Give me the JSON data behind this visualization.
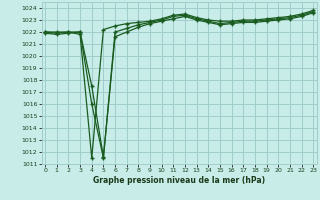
{
  "title": "Graphe pression niveau de la mer (hPa)",
  "bg_color": "#c8ede8",
  "grid_color": "#a0cccc",
  "line_color": "#1a5c20",
  "marker": "+",
  "ylim": [
    1011,
    1024.5
  ],
  "xlim": [
    -0.3,
    23.3
  ],
  "yticks": [
    1011,
    1012,
    1013,
    1014,
    1015,
    1016,
    1017,
    1018,
    1019,
    1020,
    1021,
    1022,
    1023,
    1024
  ],
  "xticks": [
    0,
    1,
    2,
    3,
    4,
    5,
    6,
    7,
    8,
    9,
    10,
    11,
    12,
    13,
    14,
    15,
    16,
    17,
    18,
    19,
    20,
    21,
    22,
    23
  ],
  "series": [
    [
      1022.0,
      1022.0,
      1022.0,
      1021.8,
      1011.5,
      1022.2,
      1022.5,
      1022.7,
      1022.8,
      1022.9,
      1023.1,
      1023.4,
      1023.5,
      1023.2,
      1023.0,
      1022.9,
      1022.9,
      1023.0,
      1023.0,
      1023.1,
      1023.2,
      1023.3,
      1023.5,
      1023.8
    ],
    [
      1022.0,
      1021.9,
      1022.0,
      1022.0,
      1016.0,
      1011.5,
      1022.0,
      1022.3,
      1022.6,
      1022.8,
      1023.0,
      1023.3,
      1023.4,
      1023.1,
      1022.9,
      1022.7,
      1022.8,
      1022.9,
      1022.9,
      1023.0,
      1023.1,
      1023.2,
      1023.4,
      1023.7
    ],
    [
      1021.9,
      1021.8,
      1021.9,
      1022.0,
      1017.5,
      1011.6,
      1021.6,
      1022.0,
      1022.4,
      1022.7,
      1022.9,
      1023.1,
      1023.3,
      1023.0,
      1022.8,
      1022.6,
      1022.7,
      1022.8,
      1022.8,
      1022.9,
      1023.0,
      1023.1,
      1023.3,
      1023.6
    ]
  ]
}
